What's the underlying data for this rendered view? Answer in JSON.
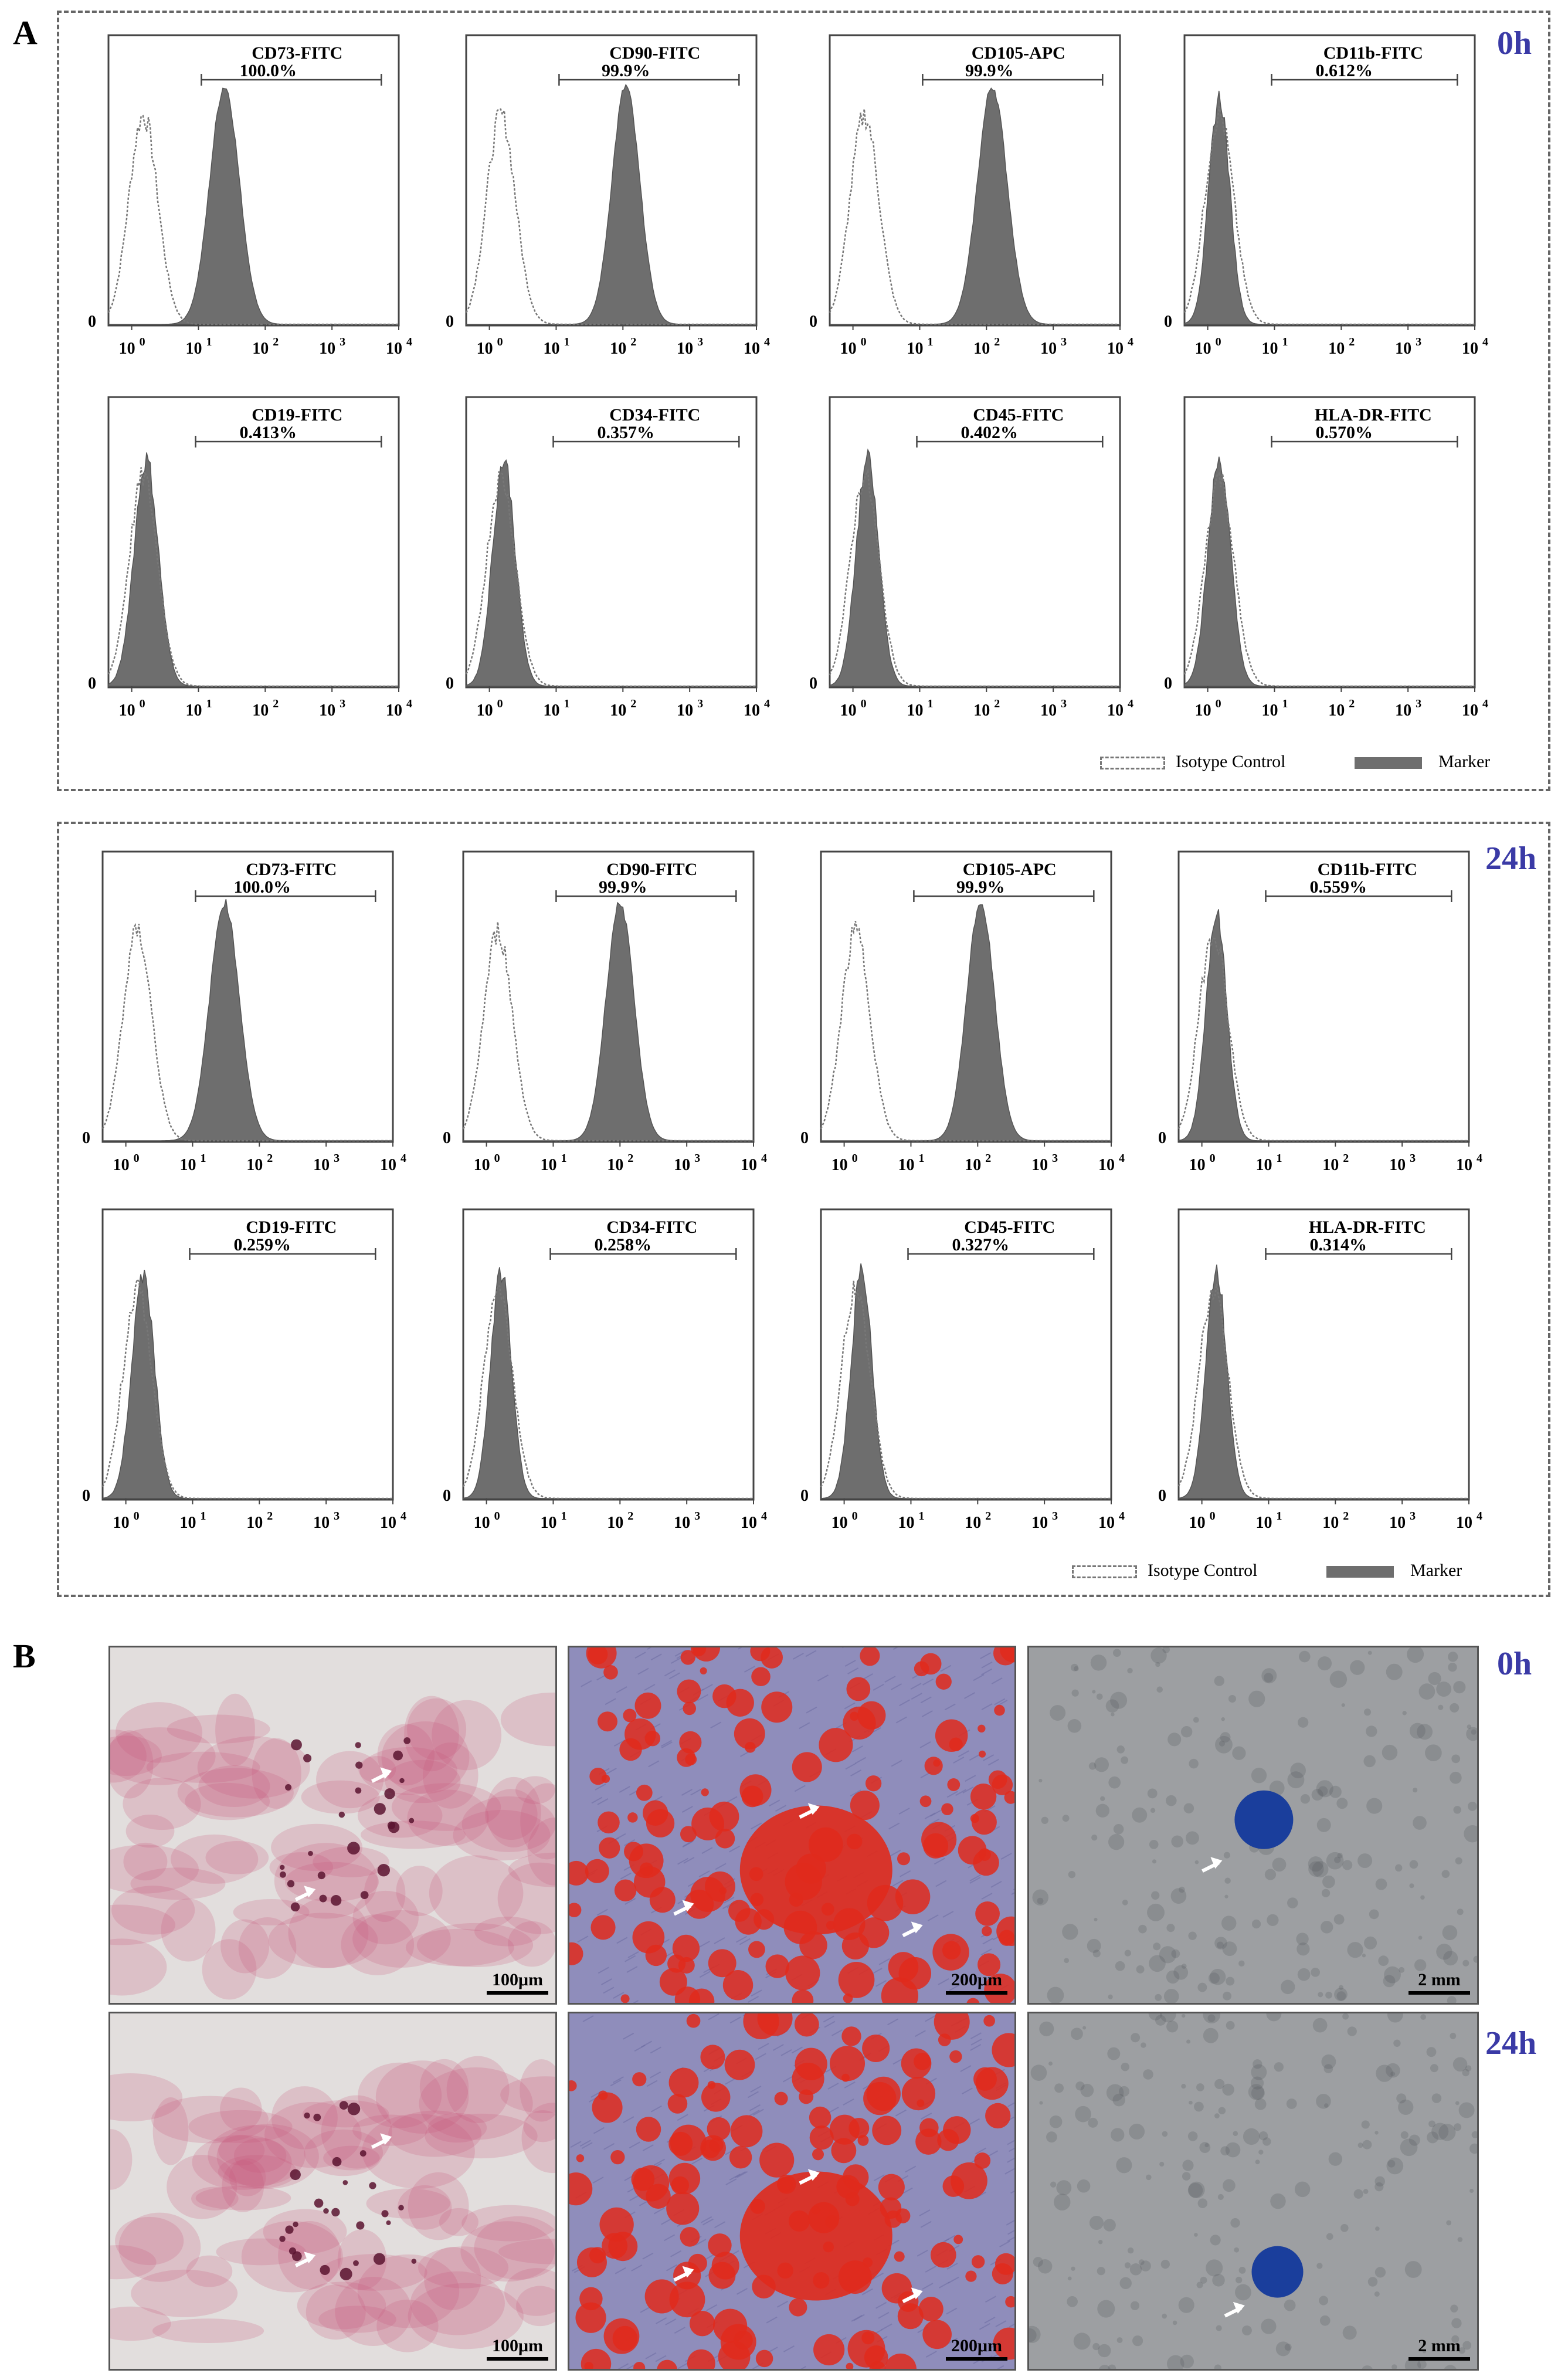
{
  "panel_a_label": "A",
  "panel_b_label": "B",
  "groups": [
    {
      "time": "0h",
      "histograms": [
        {
          "marker": "CD73-FITC",
          "percent": "100.0%",
          "peak": 0.4,
          "width": 0.085,
          "positive": true
        },
        {
          "marker": "CD90-FITC",
          "percent": "99.9%",
          "peak": 0.55,
          "width": 0.08,
          "positive": true
        },
        {
          "marker": "CD105-APC",
          "percent": "99.9%",
          "peak": 0.56,
          "width": 0.085,
          "positive": true
        },
        {
          "marker": "CD11b-FITC",
          "percent": "0.612%",
          "peak": 0.12,
          "width": 0.06,
          "positive": false
        },
        {
          "marker": "CD19-FITC",
          "percent": "0.413%",
          "peak": 0.13,
          "width": 0.07,
          "positive": false
        },
        {
          "marker": "CD34-FITC",
          "percent": "0.357%",
          "peak": 0.13,
          "width": 0.065,
          "positive": false
        },
        {
          "marker": "CD45-FITC",
          "percent": "0.402%",
          "peak": 0.13,
          "width": 0.065,
          "positive": false
        },
        {
          "marker": "HLA-DR-FITC",
          "percent": "0.570%",
          "peak": 0.12,
          "width": 0.065,
          "positive": false
        }
      ],
      "legend": {
        "isotype": "Isotype Control",
        "marker": "Marker"
      }
    },
    {
      "time": "24h",
      "histograms": [
        {
          "marker": "CD73-FITC",
          "percent": "100.0%",
          "peak": 0.42,
          "width": 0.085,
          "positive": true
        },
        {
          "marker": "CD90-FITC",
          "percent": "99.9%",
          "peak": 0.54,
          "width": 0.08,
          "positive": true
        },
        {
          "marker": "CD105-APC",
          "percent": "99.9%",
          "peak": 0.55,
          "width": 0.08,
          "positive": true
        },
        {
          "marker": "CD11b-FITC",
          "percent": "0.559%",
          "peak": 0.13,
          "width": 0.06,
          "positive": false
        },
        {
          "marker": "CD19-FITC",
          "percent": "0.259%",
          "peak": 0.14,
          "width": 0.065,
          "positive": false
        },
        {
          "marker": "CD34-FITC",
          "percent": "0.258%",
          "peak": 0.13,
          "width": 0.06,
          "positive": false
        },
        {
          "marker": "CD45-FITC",
          "percent": "0.327%",
          "peak": 0.14,
          "width": 0.06,
          "positive": false
        },
        {
          "marker": "HLA-DR-FITC",
          "percent": "0.314%",
          "peak": 0.13,
          "width": 0.06,
          "positive": false
        }
      ],
      "legend": {
        "isotype": "Isotype Control",
        "marker": "Marker"
      }
    }
  ],
  "axis": {
    "zero": "0",
    "ticks": [
      "10",
      "10",
      "10",
      "10",
      "10"
    ],
    "exponents": [
      "0",
      "1",
      "2",
      "3",
      "4"
    ]
  },
  "micrographs": {
    "times": [
      "0h",
      "24h"
    ],
    "scale_bars": [
      "100μm",
      "200μm",
      "2 mm"
    ],
    "colors": {
      "adipo_bg": "#e2dedd",
      "adipo_stain": "#c9577a",
      "osteo_bg": "#8f8dbb",
      "osteo_stain": "#e02a1c",
      "chondro_bg": "#9d9fa2",
      "chondro_pellet": "#1a3e9c"
    }
  }
}
